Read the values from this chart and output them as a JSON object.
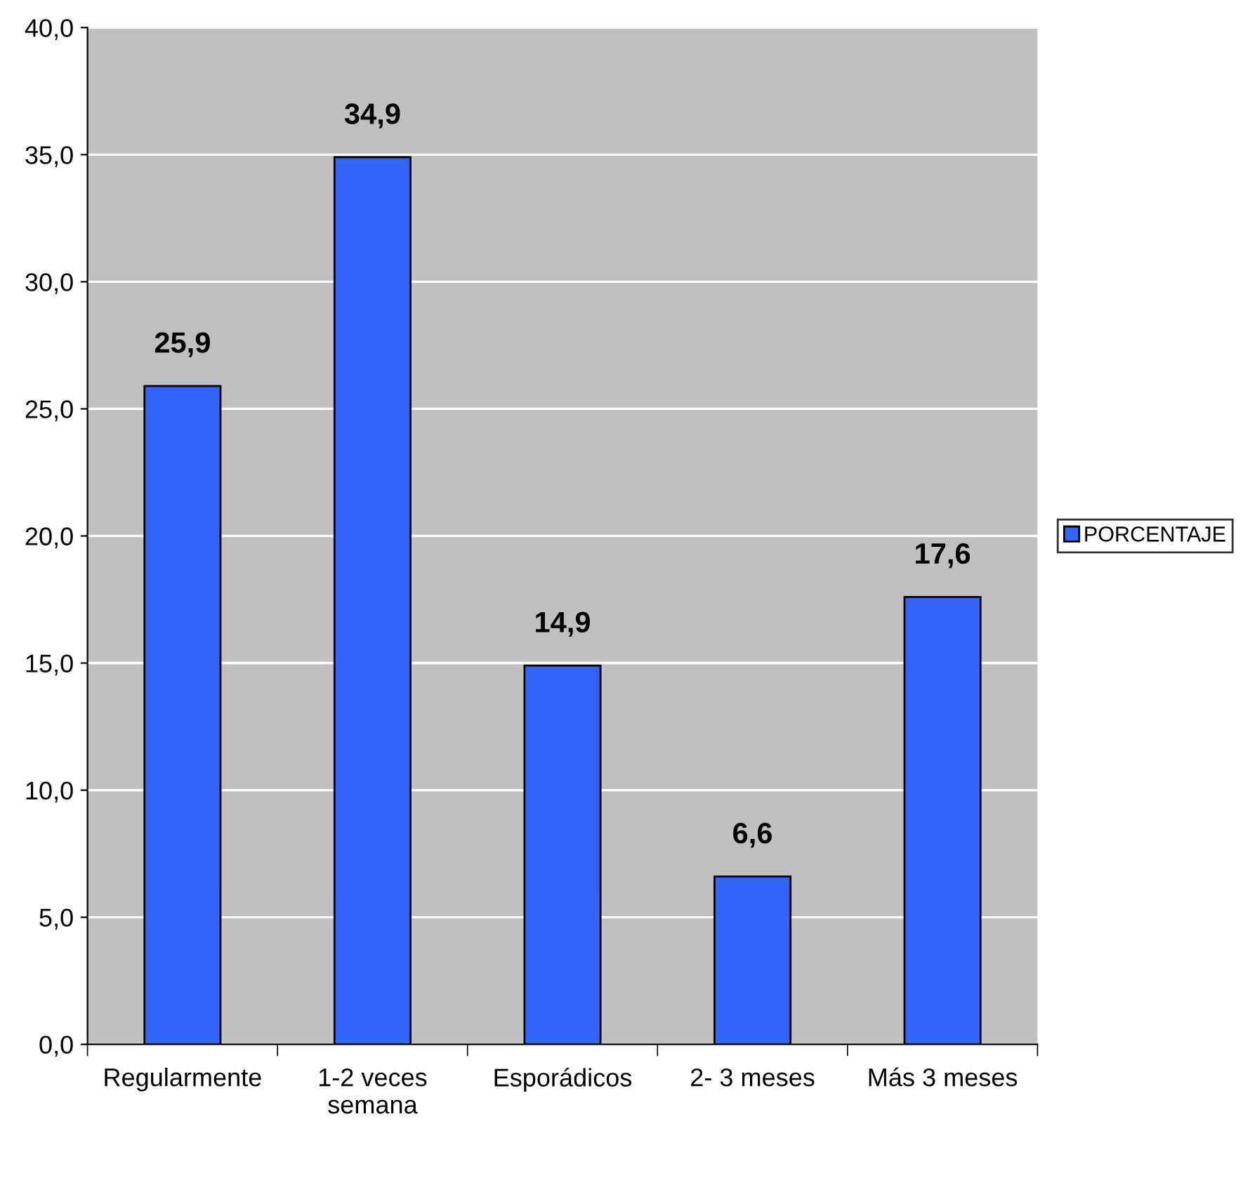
{
  "chart_data": {
    "type": "bar",
    "categories": [
      "Regularmente",
      "1-2 veces\nsemana",
      "Esporádicos",
      "2- 3 meses",
      "Más 3 meses"
    ],
    "series": [
      {
        "name": "PORCENTAJE",
        "color": "#3366ff",
        "values": [
          25.9,
          34.9,
          14.9,
          6.6,
          17.6
        ],
        "value_labels": [
          "25,9",
          "34,9",
          "14,9",
          "6,6",
          "17,6"
        ]
      }
    ],
    "ylim": [
      0,
      40
    ],
    "yticks": [
      {
        "value": 0,
        "label": "0,0"
      },
      {
        "value": 5,
        "label": "5,0"
      },
      {
        "value": 10,
        "label": "10,0"
      },
      {
        "value": 15,
        "label": "15,0"
      },
      {
        "value": 20,
        "label": "20,0"
      },
      {
        "value": 25,
        "label": "25,0"
      },
      {
        "value": 30,
        "label": "30,0"
      },
      {
        "value": 35,
        "label": "35,0"
      },
      {
        "value": 40,
        "label": "40,0"
      }
    ],
    "grid": "y",
    "legend": "right"
  }
}
